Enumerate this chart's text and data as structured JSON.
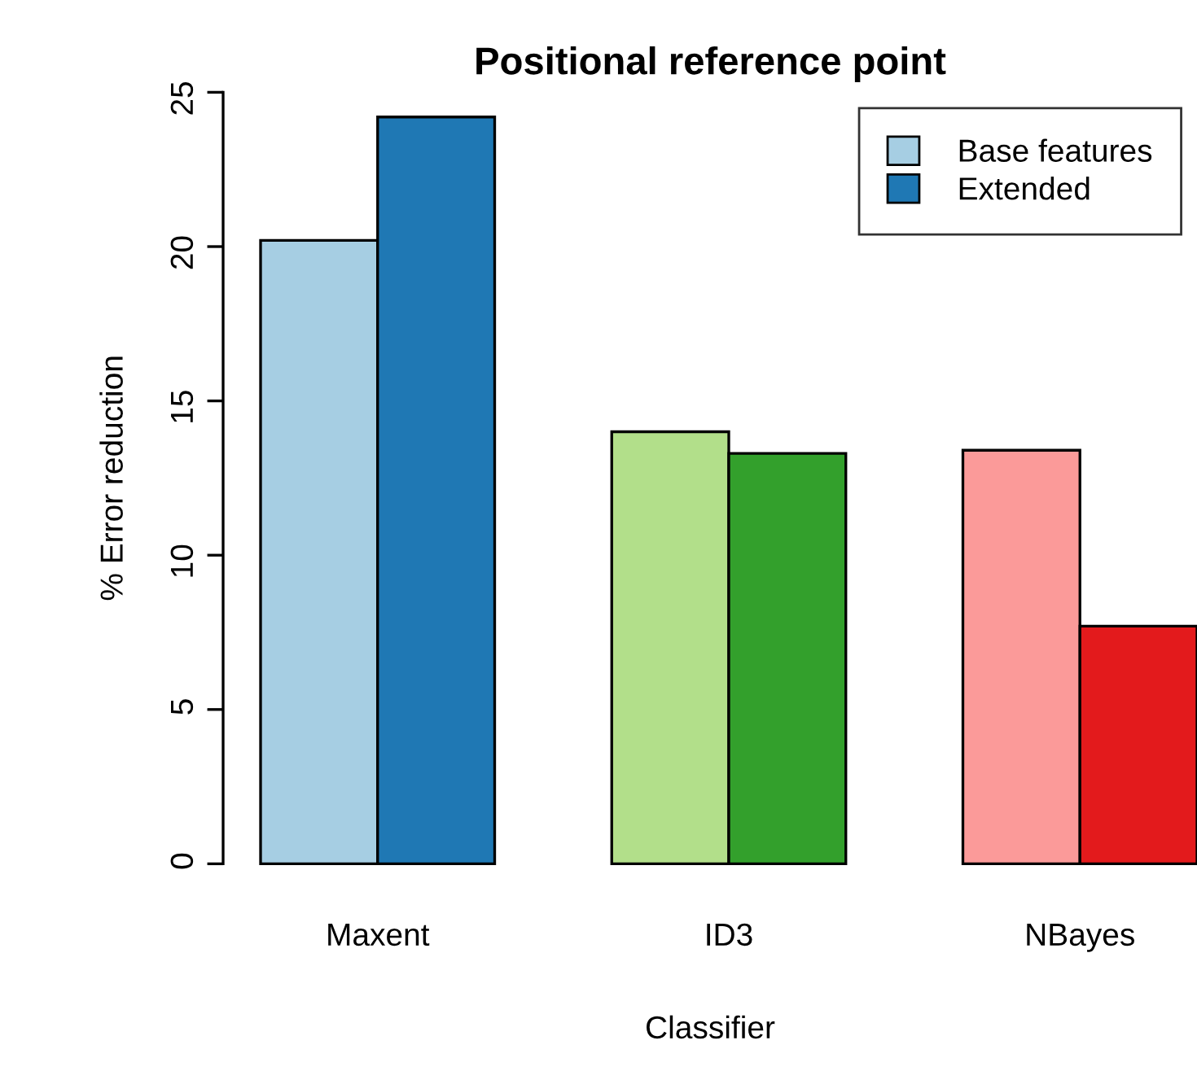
{
  "chart_data": {
    "type": "bar",
    "title": "Positional reference point",
    "xlabel": "Classifier",
    "ylabel": "% Error reduction",
    "categories": [
      "Maxent",
      "ID3",
      "NBayes"
    ],
    "series": [
      {
        "name": "Base features",
        "color": "#a6cee3",
        "colors": [
          "#a6cee3",
          "#b2df8a",
          "#fb9a99"
        ],
        "values": [
          20.2,
          14.0,
          13.4
        ]
      },
      {
        "name": "Extended",
        "color": "#1f78b4",
        "colors": [
          "#1f78b4",
          "#33a02c",
          "#e31a1c"
        ],
        "values": [
          24.2,
          13.3,
          7.7
        ]
      }
    ],
    "ylim": [
      0,
      25
    ],
    "yticks": [
      0,
      5,
      10,
      15,
      20,
      25
    ],
    "grid": false,
    "legend": "top right"
  }
}
